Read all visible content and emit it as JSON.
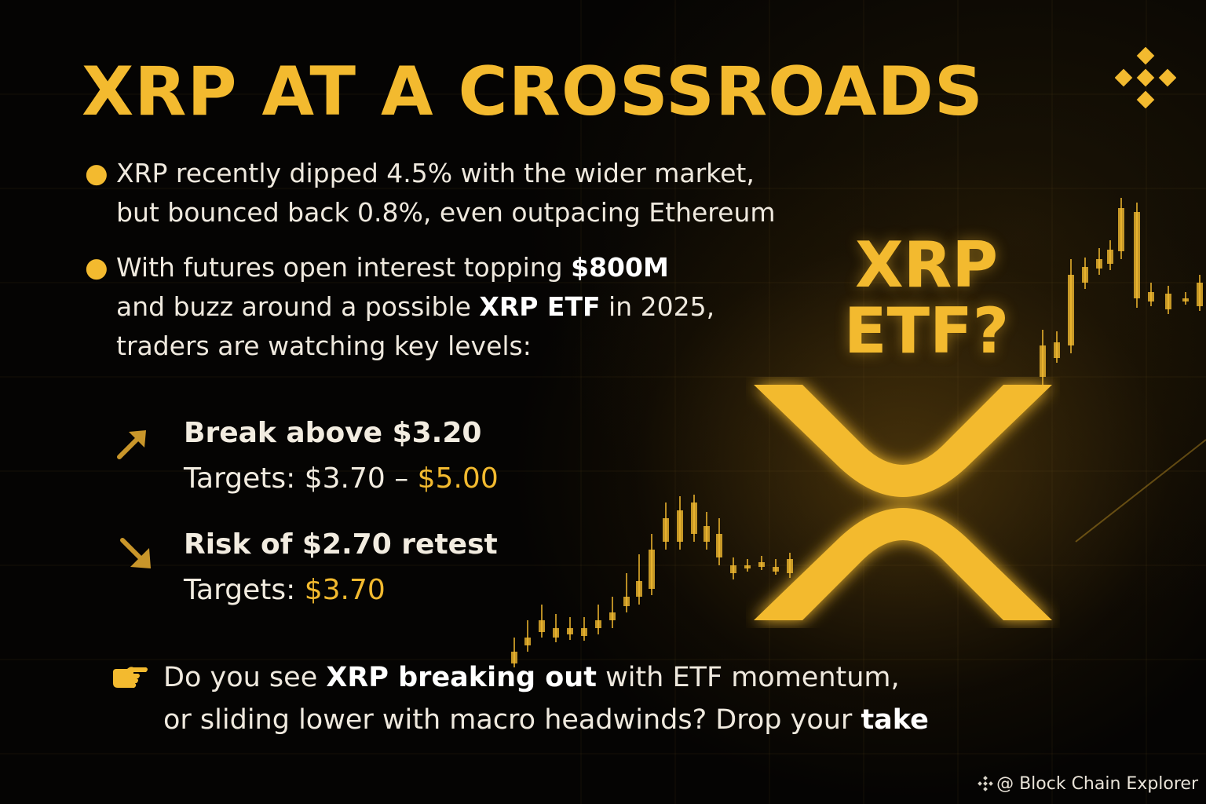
{
  "title": "XRP AT A CROSSROADS",
  "bullets": [
    {
      "lines": [
        [
          {
            "t": "XRP",
            "b": false
          },
          {
            "t": " recently dipped 4.5% with the wider market,",
            "b": false
          }
        ],
        [
          {
            "t": "but bounced back 0.8%, even outpacing Ethereum",
            "b": false
          }
        ]
      ]
    },
    {
      "lines": [
        [
          {
            "t": "With futures open interest topping ",
            "b": false
          },
          {
            "t": "$800M",
            "b": true
          }
        ],
        [
          {
            "t": "and buzz around a possible ",
            "b": false
          },
          {
            "t": "XRP ETF",
            "b": true
          },
          {
            "t": " in 2025,",
            "b": false
          }
        ],
        [
          {
            "t": "traders are watching key levels:",
            "b": false
          }
        ]
      ]
    }
  ],
  "levels": {
    "up": {
      "icon": "arrow-up-right-icon",
      "heading": "Break above $3.20",
      "targets_label": "Targets: $3.70 – ",
      "targets_highlight": "$5.00"
    },
    "down": {
      "icon": "arrow-down-right-icon",
      "heading": "Risk of $2.70 retest",
      "targets_label": "Targets: ",
      "targets_highlight": "$3.70"
    }
  },
  "etf_question": {
    "line1": "XRP",
    "line2": "ETF?"
  },
  "logo_icon": "xrp-logo-icon",
  "brand_icon": "binance-logo-icon",
  "cta": {
    "icon": "pointing-hand-icon",
    "lines": [
      [
        {
          "t": "Do you see ",
          "b": false
        },
        {
          "t": "XRP breaking out",
          "b": true
        },
        {
          "t": " with ETF momentum,",
          "b": false
        }
      ],
      [
        {
          "t": "or sliding lower with macro headwinds? Drop your ",
          "b": false
        },
        {
          "t": "take",
          "b": true
        }
      ]
    ]
  },
  "credit": "@ Block Chain Explorer",
  "colors": {
    "accent": "#f3ba2f",
    "background": "#050403",
    "text": "#efe9de"
  }
}
